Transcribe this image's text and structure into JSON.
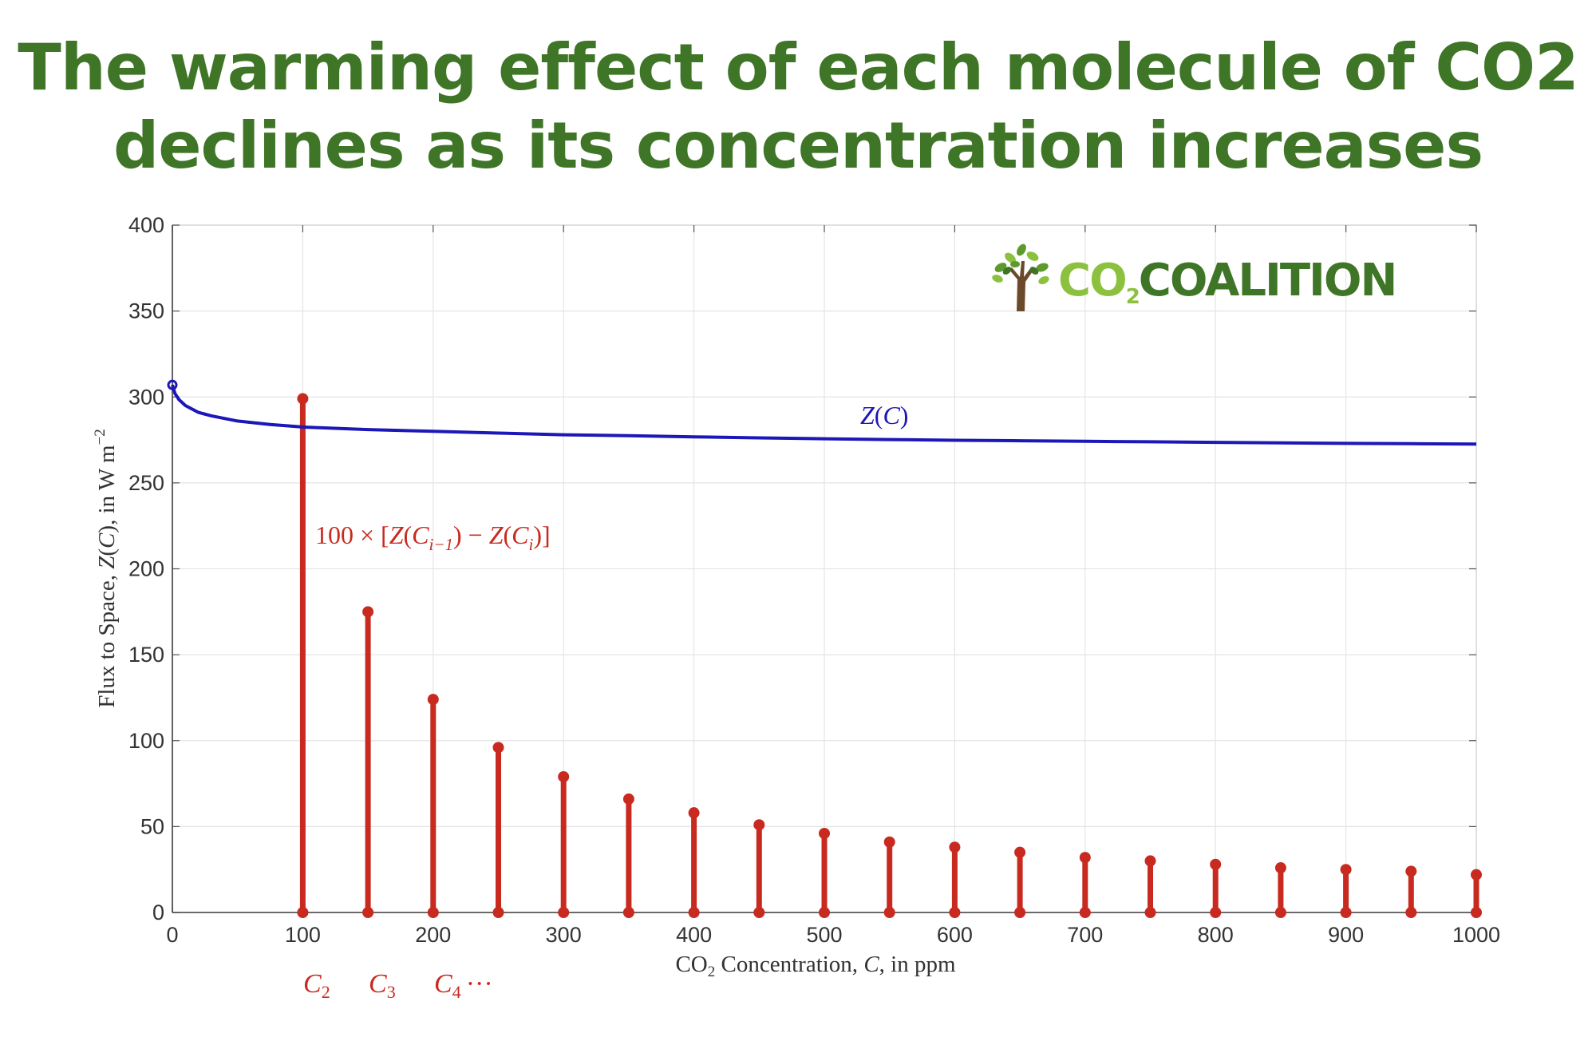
{
  "headline": {
    "line1": "The warming effect of each molecule of CO2",
    "line2": "declines as its concentration increases"
  },
  "logo": {
    "text_part1": "CO",
    "text_sub": "2",
    "text_part2": "COALITION",
    "icon": "tree-icon",
    "colors": {
      "co2": "#8cc13f",
      "coalition": "#3f7526",
      "trunk": "#6b4a2a",
      "leaves": "#5c9a2e"
    }
  },
  "chart_data": {
    "type": "line",
    "title": "",
    "xlabel": "CO₂ Concentration, C, in ppm",
    "xlabel_parts": {
      "pre": "CO",
      "sub": "2",
      "post": " Concentration, ",
      "var": "C",
      "tail": ", in ppm"
    },
    "ylabel": "Flux to Space, Z(C), in W m⁻²",
    "ylabel_parts": {
      "pre": "Flux to Space, ",
      "var": "Z",
      "mid": "(",
      "var2": "C",
      "post": "), in W m",
      "sup": "−2"
    },
    "xlim": [
      0,
      1000
    ],
    "ylim": [
      0,
      400
    ],
    "xticks": [
      0,
      100,
      200,
      300,
      400,
      500,
      600,
      700,
      800,
      900,
      1000
    ],
    "yticks": [
      0,
      50,
      100,
      150,
      200,
      250,
      300,
      350,
      400
    ],
    "grid": true,
    "series": [
      {
        "name": "Z(C)",
        "kind": "line",
        "color": "#1c17b8",
        "x": [
          0,
          2,
          5,
          10,
          20,
          30,
          50,
          75,
          100,
          150,
          200,
          250,
          300,
          350,
          400,
          450,
          500,
          550,
          600,
          650,
          700,
          750,
          800,
          850,
          900,
          950,
          1000
        ],
        "y": [
          307,
          302,
          298.5,
          295,
          291,
          289,
          286,
          284,
          282.5,
          281,
          280,
          279,
          278,
          277.5,
          276.8,
          276.2,
          275.7,
          275.2,
          274.8,
          274.5,
          274.2,
          273.9,
          273.6,
          273.3,
          273.0,
          272.8,
          272.6
        ]
      },
      {
        "name": "100 × [Z(Cᵢ₋₁) − Z(Cᵢ)]",
        "kind": "stem",
        "color": "#c82a20",
        "x": [
          100,
          150,
          200,
          250,
          300,
          350,
          400,
          450,
          500,
          550,
          600,
          650,
          700,
          750,
          800,
          850,
          900,
          950,
          1000
        ],
        "y": [
          299,
          175,
          124,
          96,
          79,
          66,
          58,
          51,
          46,
          41,
          38,
          35,
          32,
          30,
          28,
          26,
          25,
          24,
          22
        ]
      }
    ],
    "annotations": {
      "zc_label": {
        "var": "Z",
        "open": "(",
        "var2": "C",
        "close": ")"
      },
      "stem_label": {
        "text": "100 × [Z(Cᵢ₋₁) − Z(Cᵢ)]",
        "a": "100 × [",
        "z1": "Z",
        "p1": "(",
        "c1": "C",
        "s1": "i−1",
        "p2": ") − ",
        "z2": "Z",
        "p3": "(",
        "c2": "C",
        "s2": "i",
        "p4": ")]"
      },
      "c_labels": [
        {
          "var": "C",
          "sub": "2"
        },
        {
          "var": "C",
          "sub": "3"
        },
        {
          "var": "C",
          "sub": "4",
          "tail": "···"
        }
      ]
    }
  }
}
